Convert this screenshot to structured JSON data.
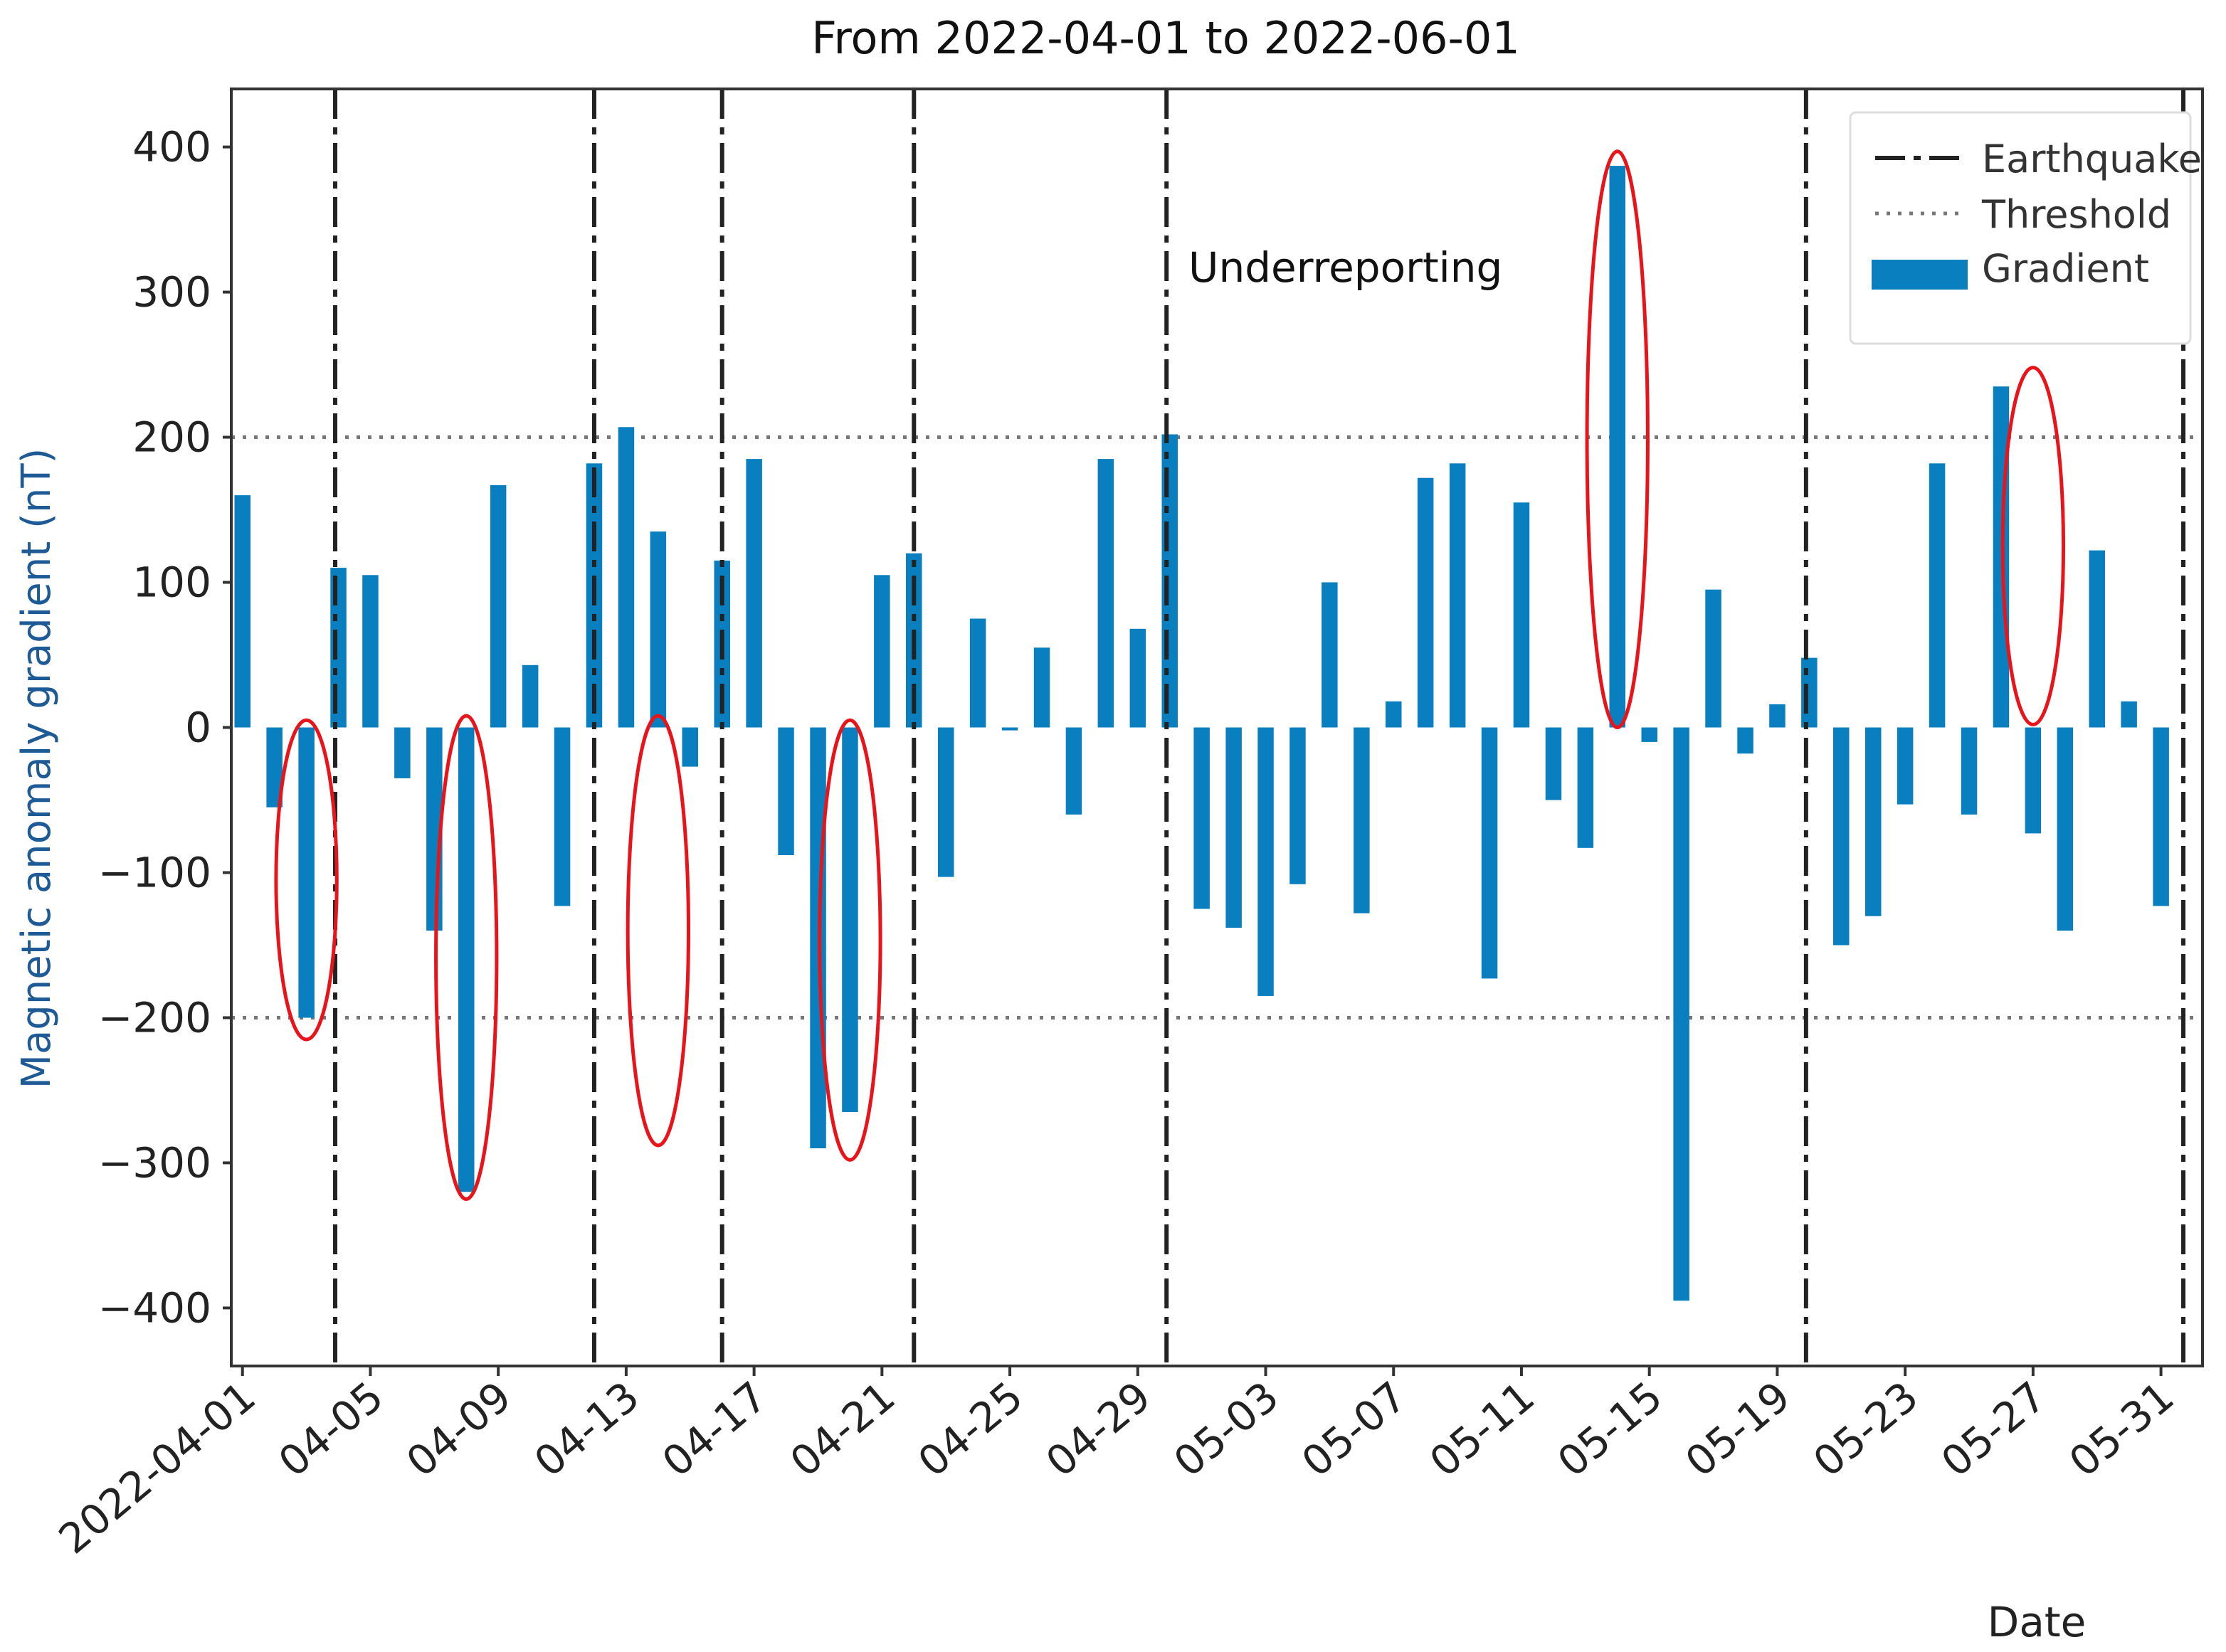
{
  "chart_data": {
    "type": "bar",
    "title": "From  2022-04-01  to  2022-06-01",
    "xlabel": "Date",
    "ylabel": "Magnetic anomaly gradient (nT)",
    "ylim": [
      -440,
      440
    ],
    "yticks": [
      400,
      300,
      200,
      100,
      0,
      -100,
      -200,
      -300,
      -400
    ],
    "ytick_labels": [
      "400",
      "300",
      "200",
      "100",
      "0",
      "−100",
      "−200",
      "−300",
      "−400"
    ],
    "thresholds": [
      200,
      -200
    ],
    "x_range": [
      -0.35,
      61.3
    ],
    "colors": {
      "bar": "#0a7fbf",
      "highlight": "#e8141a",
      "threshold": "#777777",
      "quake": "#222222"
    },
    "xticks": [
      {
        "index": 0,
        "label": "2022-04-01"
      },
      {
        "index": 4,
        "label": "04-05"
      },
      {
        "index": 8,
        "label": "04-09"
      },
      {
        "index": 12,
        "label": "04-13"
      },
      {
        "index": 16,
        "label": "04-17"
      },
      {
        "index": 20,
        "label": "04-21"
      },
      {
        "index": 24,
        "label": "04-25"
      },
      {
        "index": 28,
        "label": "04-29"
      },
      {
        "index": 32,
        "label": "05-03"
      },
      {
        "index": 36,
        "label": "05-07"
      },
      {
        "index": 40,
        "label": "05-11"
      },
      {
        "index": 44,
        "label": "05-15"
      },
      {
        "index": 48,
        "label": "05-19"
      },
      {
        "index": 52,
        "label": "05-23"
      },
      {
        "index": 56,
        "label": "05-27"
      },
      {
        "index": 60,
        "label": "05-31"
      }
    ],
    "series": [
      {
        "name": "Gradient",
        "values": [
          160,
          -55,
          -200,
          110,
          105,
          -35,
          -140,
          -320,
          167,
          43,
          -123,
          182,
          207,
          135,
          -27,
          115,
          185,
          -88,
          -290,
          -265,
          105,
          120,
          -103,
          75,
          -2,
          55,
          -60,
          185,
          68,
          202,
          -125,
          -138,
          -185,
          -108,
          100,
          -128,
          18,
          172,
          182,
          -173,
          155,
          -50,
          -83,
          387,
          -10,
          -395,
          95,
          -18,
          16,
          48,
          -150,
          -130,
          -53,
          182,
          -60,
          235,
          -73,
          -140,
          122,
          18,
          -123
        ]
      }
    ],
    "earthquakes": [
      2.9,
      11.0,
      15.0,
      21.0,
      28.9,
      48.9,
      60.7
    ],
    "highlights": [
      {
        "index": 2,
        "low": -215,
        "high": 5
      },
      {
        "index": 7,
        "low": -325,
        "high": 8
      },
      {
        "index": 13,
        "low": -288,
        "high": 8
      },
      {
        "index": 19,
        "low": -298,
        "high": 5
      },
      {
        "index": 43,
        "low": 0,
        "high": 397
      },
      {
        "index": 56,
        "low": 2,
        "high": 248
      }
    ],
    "annotations": [
      {
        "text": "Underreporting"
      }
    ],
    "legend": {
      "position": "top-right",
      "entries": [
        {
          "label": "Earthquake",
          "style": "dashdot"
        },
        {
          "label": "Threshold",
          "style": "dotted"
        },
        {
          "label": "Gradient",
          "style": "patch"
        }
      ]
    }
  }
}
